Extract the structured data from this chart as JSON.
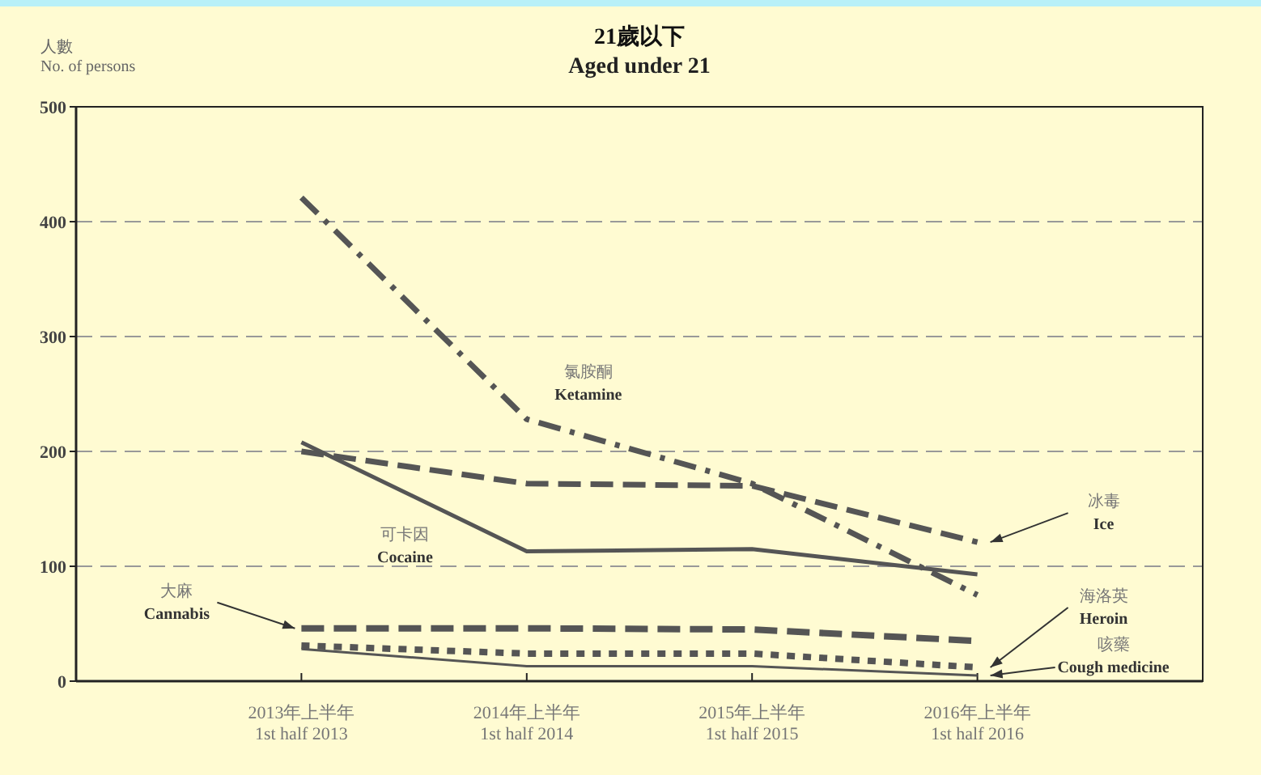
{
  "chart_data": {
    "type": "line",
    "title": "21歲以下",
    "subtitle": "Aged under 21",
    "ylabel": "人數\nNo. of persons",
    "categories": [
      "2013年上半年\n1st half 2013",
      "2014年上半年\n1st half 2014",
      "2015年上半年\n1st half 2015",
      "2016年上半年\n1st half 2016"
    ],
    "ylim": [
      0,
      500
    ],
    "yticks": [
      0,
      100,
      200,
      300,
      400,
      500
    ],
    "grid": "y",
    "marker": "none",
    "series": [
      {
        "name": "氯胺酮\nKetamine",
        "color": "#555555",
        "line_style": "dashdot",
        "values": [
          421,
          228,
          172,
          75
        ]
      },
      {
        "name": "冰毒\nIce",
        "color": "#555555",
        "line_style": "dashed",
        "values": [
          200,
          172,
          170,
          121
        ]
      },
      {
        "name": "可卡因\nCocaine",
        "color": "#555555",
        "line_style": "solid",
        "values": [
          208,
          113,
          115,
          93
        ]
      },
      {
        "name": "大麻\nCannabis",
        "color": "#555555",
        "line_style": "dashed",
        "values": [
          46,
          46,
          45,
          35
        ]
      },
      {
        "name": "海洛英\nHeroin",
        "color": "#555555",
        "line_style": "dotted",
        "values": [
          31,
          24,
          24,
          12
        ]
      },
      {
        "name": "咳藥\nCough medicine",
        "color": "#555555",
        "line_style": "solid",
        "values": [
          28,
          13,
          13,
          5
        ]
      }
    ]
  }
}
